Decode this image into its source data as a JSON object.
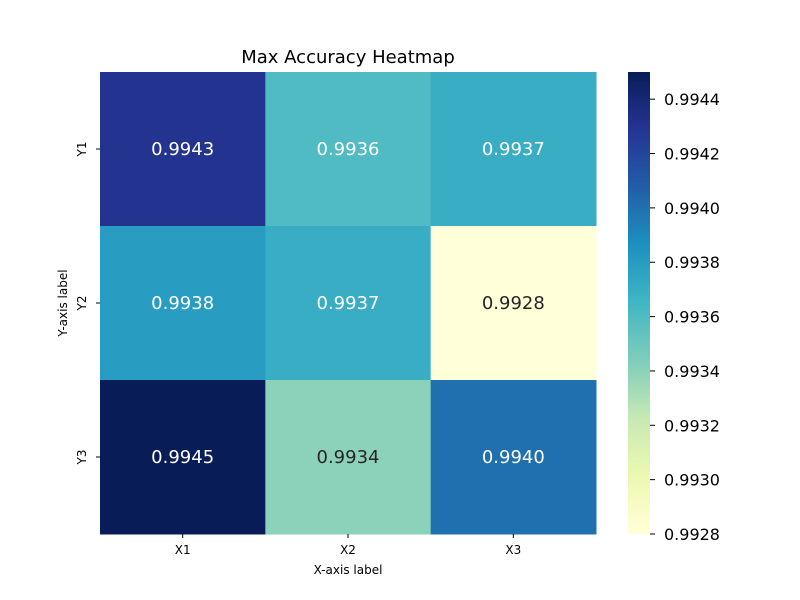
{
  "chart_data": {
    "type": "heatmap",
    "title": "Max Accuracy Heatmap",
    "xlabel": "X-axis label",
    "ylabel": "Y-axis label",
    "x_categories": [
      "X1",
      "X2",
      "X3"
    ],
    "y_categories": [
      "Y1",
      "Y2",
      "Y3"
    ],
    "values": [
      [
        0.9943,
        0.9936,
        0.9937
      ],
      [
        0.9938,
        0.9937,
        0.9928
      ],
      [
        0.9945,
        0.9934,
        0.994
      ]
    ],
    "value_labels": [
      [
        "0.9943",
        "0.9936",
        "0.9937"
      ],
      [
        "0.9938",
        "0.9937",
        "0.9928"
      ],
      [
        "0.9945",
        "0.9934",
        "0.9940"
      ]
    ],
    "colormap": "YlGnBu",
    "colorbar": {
      "range": [
        0.9928,
        0.9945
      ],
      "ticks": [
        0.9928,
        0.993,
        0.9932,
        0.9934,
        0.9936,
        0.9938,
        0.994,
        0.9942,
        0.9944
      ],
      "tick_labels": [
        "0.9928",
        "0.9930",
        "0.9932",
        "0.9934",
        "0.9936",
        "0.9938",
        "0.9940",
        "0.9942",
        "0.9944"
      ]
    },
    "text_colors": {
      "light": "#ffffff",
      "dark": "#262626"
    }
  }
}
